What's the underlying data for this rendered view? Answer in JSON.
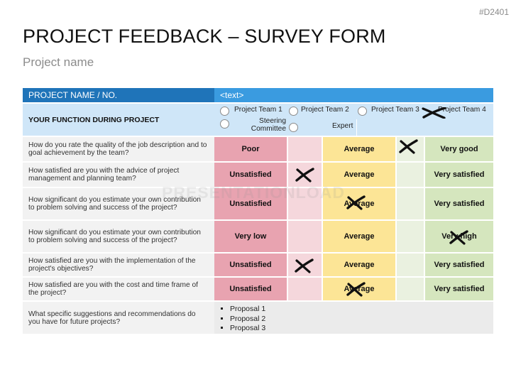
{
  "slide_id": "#D2401",
  "title": "PROJECT FEEDBACK – SURVEY FORM",
  "subtitle": "Project name",
  "header": {
    "label": "PROJECT NAME / NO.",
    "value": "<text>"
  },
  "function": {
    "label": "YOUR FUNCTION DURING PROJECT",
    "options": [
      "Project Team 1",
      "Project Team  2",
      "Project Team 3",
      "Project Team  4",
      "Steering Committee",
      "Expert"
    ]
  },
  "questions": [
    {
      "text": "How do you rate the quality of the job description and to goal achievement by the team?",
      "low": "Poor",
      "mid": "Average",
      "high": "Very good"
    },
    {
      "text": "How satisfied are you with the advice of project management and planning team?",
      "low": "Unsatisfied",
      "mid": "Average",
      "high": "Very satisfied"
    },
    {
      "text": "How significant do you estimate your own contribution to problem solving and success of the project?",
      "low": "Unsatisfied",
      "mid": "Average",
      "high": "Very satisfied"
    },
    {
      "text": "How significant do you estimate your own contribution to problem solving and success of the project?",
      "low": "Very low",
      "mid": "Average",
      "high": "Very high"
    },
    {
      "text": "How satisfied are you with the implementation of the project's objectives?",
      "low": "Unsatisfied",
      "mid": "Average",
      "high": "Very satisfied"
    },
    {
      "text": "How satisfied are you with the cost and time frame of the project?",
      "low": "Unsatisfied",
      "mid": "Average",
      "high": "Very satisfied"
    }
  ],
  "suggestions": {
    "question": "What specific suggestions and recommendations do you have for future projects?",
    "items": [
      "Proposal 1",
      "Proposal 2",
      "Proposal 3"
    ]
  },
  "watermark": "PRESENTATIONLOAD",
  "colors": {
    "header_dark": "#1f74b9",
    "header_light": "#3a9be0",
    "function_bg": "#cfe6f8",
    "low": "#e8a3b0",
    "low_mid": "#f5d7dc",
    "mid": "#fce596",
    "mid_high": "#eaf1e0",
    "high": "#d5e6be",
    "mark": "#111111"
  }
}
